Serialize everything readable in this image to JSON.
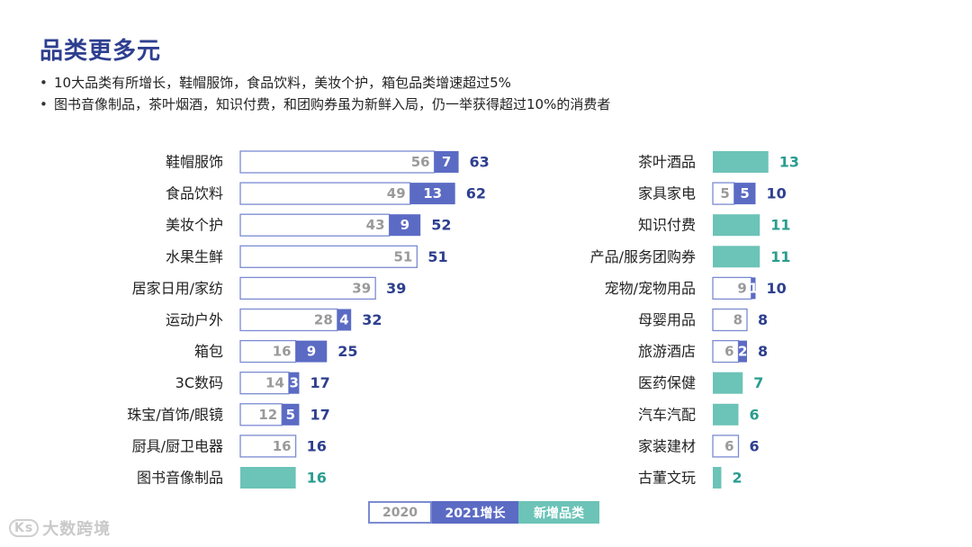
{
  "title": "品类更多元",
  "bullets": [
    "10大品类有所增长，鞋帽服饰，食品饮料，美妆个护，箱包品类增速超过5%",
    "图书音像制品，茶叶烟酒，知识付费，和团购券虽为新鲜入局，仍一举获得超过10%的消费者"
  ],
  "colors": {
    "base": "#ffffff",
    "base_border": "#7b8bd1",
    "growth": "#5b6bc4",
    "new": "#6cc3b7",
    "total_text": "#2e3f8f",
    "new_text": "#2a9d8f",
    "base_text": "#9a9a9a"
  },
  "chart_data": [
    {
      "type": "bar",
      "orientation": "horizontal",
      "stacked": true,
      "categories": [
        "鞋帽服饰",
        "食品饮料",
        "美妆个护",
        "水果生鲜",
        "居家日用/家纺",
        "运动户外",
        "箱包",
        "3C数码",
        "珠宝/首饰/眼镜",
        "厨具/厨卫电器",
        "图书音像制品"
      ],
      "series": [
        {
          "name": "2020",
          "values": [
            56,
            49,
            43,
            51,
            39,
            28,
            16,
            14,
            12,
            16,
            null
          ]
        },
        {
          "name": "2021增长",
          "values": [
            7,
            13,
            9,
            null,
            null,
            4,
            9,
            3,
            5,
            null,
            null
          ]
        },
        {
          "name": "新增品类",
          "values": [
            null,
            null,
            null,
            null,
            null,
            null,
            null,
            null,
            null,
            null,
            16
          ]
        }
      ],
      "totals": [
        63,
        62,
        52,
        51,
        39,
        32,
        25,
        17,
        17,
        16,
        16
      ],
      "xlim": [
        0,
        65
      ]
    },
    {
      "type": "bar",
      "orientation": "horizontal",
      "stacked": true,
      "categories": [
        "茶叶酒品",
        "家具家电",
        "知识付费",
        "产品/服务团购券",
        "宠物/宠物用品",
        "母婴用品",
        "旅游酒店",
        "医药保健",
        "汽车汽配",
        "家装建材",
        "古董文玩"
      ],
      "series": [
        {
          "name": "2020",
          "values": [
            null,
            5,
            null,
            null,
            9,
            8,
            6,
            null,
            null,
            6,
            null
          ]
        },
        {
          "name": "2021增长",
          "values": [
            null,
            5,
            null,
            null,
            1,
            null,
            2,
            null,
            null,
            null,
            null
          ]
        },
        {
          "name": "新增品类",
          "values": [
            13,
            null,
            11,
            11,
            null,
            null,
            null,
            7,
            6,
            null,
            2
          ]
        }
      ],
      "totals": [
        13,
        10,
        11,
        11,
        10,
        8,
        8,
        7,
        6,
        6,
        2
      ],
      "xlim": [
        0,
        65
      ]
    }
  ],
  "legend": {
    "base": "2020",
    "growth": "2021增长",
    "new": "新增品类"
  },
  "watermark": {
    "logo": "Ks",
    "text": "大数跨境"
  }
}
